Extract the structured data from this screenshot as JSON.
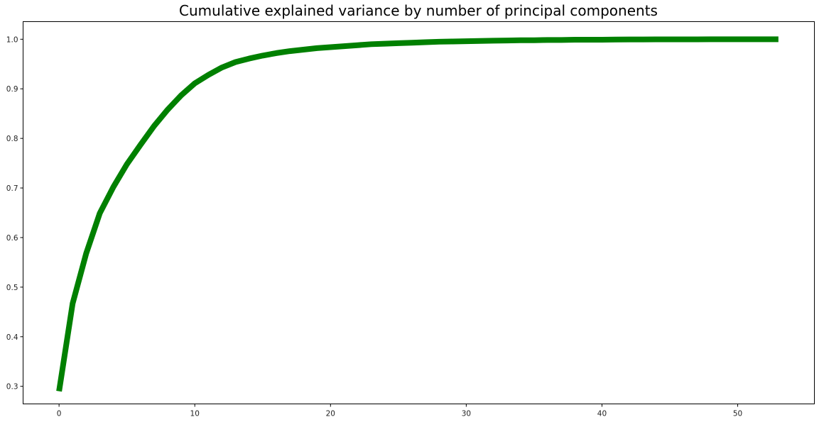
{
  "chart_data": {
    "type": "line",
    "title": "Cumulative explained variance by number of principal components",
    "xlabel": "",
    "ylabel": "",
    "xlim": [
      -2.65,
      55.65
    ],
    "ylim": [
      0.2645,
      1.0355
    ],
    "xticks": [
      0,
      10,
      20,
      30,
      40,
      50
    ],
    "yticks": [
      0.3,
      0.4,
      0.5,
      0.6,
      0.7,
      0.8,
      0.9,
      1.0
    ],
    "xtick_labels": [
      "0",
      "10",
      "20",
      "30",
      "40",
      "50"
    ],
    "ytick_labels": [
      "0.3",
      "0.4",
      "0.5",
      "0.6",
      "0.7",
      "0.8",
      "0.9",
      "1.0"
    ],
    "grid": false,
    "series": [
      {
        "color": "#008000",
        "x": [
          0,
          1,
          2,
          3,
          4,
          5,
          6,
          7,
          8,
          9,
          10,
          11,
          12,
          13,
          14,
          15,
          16,
          17,
          18,
          19,
          20,
          21,
          22,
          23,
          24,
          25,
          26,
          27,
          28,
          29,
          30,
          31,
          32,
          33,
          34,
          35,
          36,
          37,
          38,
          39,
          40,
          41,
          42,
          43,
          44,
          45,
          46,
          47,
          48,
          49,
          50,
          51,
          52,
          53
        ],
        "y": [
          0.29,
          0.467,
          0.568,
          0.649,
          0.702,
          0.748,
          0.787,
          0.825,
          0.858,
          0.887,
          0.911,
          0.928,
          0.943,
          0.954,
          0.961,
          0.967,
          0.972,
          0.976,
          0.979,
          0.982,
          0.984,
          0.986,
          0.988,
          0.99,
          0.991,
          0.992,
          0.993,
          0.994,
          0.995,
          0.9955,
          0.996,
          0.9965,
          0.997,
          0.9975,
          0.998,
          0.998,
          0.9985,
          0.9985,
          0.999,
          0.999,
          0.999,
          0.9993,
          0.9995,
          0.9996,
          0.9997,
          0.9997,
          0.9998,
          0.9998,
          0.9999,
          0.9999,
          0.9999,
          1.0,
          1.0,
          1.0
        ]
      }
    ]
  }
}
